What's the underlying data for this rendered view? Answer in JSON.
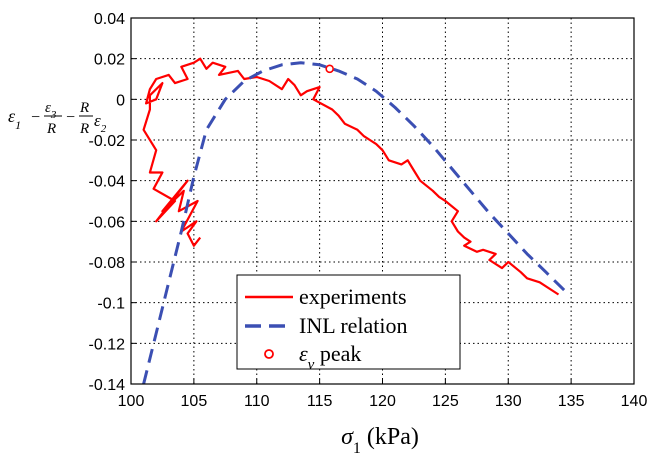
{
  "chart_data": {
    "type": "line",
    "xlabel": "σ1 (kPa)",
    "ylabel": "ε1 − ε3/R − R0/R ε2",
    "xlim": [
      100,
      140
    ],
    "ylim": [
      -0.14,
      0.04
    ],
    "xticks": [
      "100",
      "105",
      "110",
      "115",
      "120",
      "125",
      "130",
      "135",
      "140"
    ],
    "yticks": [
      "0.04",
      "0.02",
      "0",
      "-0.02",
      "-0.04",
      "-0.06",
      "-0.08",
      "-0.1",
      "-0.12",
      "-0.14"
    ],
    "grid": true,
    "legend_position": "bottom-center",
    "series": [
      {
        "name": "experiments",
        "style": "solid",
        "color": "#ff0000",
        "x": [
          105.5,
          105.0,
          104.5,
          105.2,
          104.0,
          105.3,
          103.8,
          104.2,
          102.5,
          104.5,
          102.0,
          103.5,
          101.8,
          102.5,
          101.5,
          102.0,
          101.0,
          101.5,
          101.5,
          102.5,
          102.0,
          101.2,
          101.5,
          102.0,
          103.0,
          103.5,
          104.5,
          104.0,
          105.0,
          105.5,
          106.0,
          106.5,
          107.5,
          107.0,
          108.5,
          109.0,
          110.0,
          111.0,
          112.0,
          112.5,
          113.0,
          113.5,
          114.0,
          115.0,
          114.5,
          116.0,
          116.5,
          117.0,
          118.0,
          118.5,
          119.0,
          119.5,
          120.0,
          120.5,
          121.5,
          122.0,
          122.5,
          123.0,
          124.0,
          124.5,
          125.0,
          126.0,
          125.5,
          126.0,
          126.5,
          127.0,
          126.5,
          127.5,
          128.0,
          129.0,
          128.5,
          129.5,
          130.0,
          131.0,
          131.5,
          132.5,
          133.5,
          134.0
        ],
        "y": [
          -0.068,
          -0.072,
          -0.066,
          -0.06,
          -0.065,
          -0.05,
          -0.055,
          -0.045,
          -0.055,
          -0.04,
          -0.06,
          -0.05,
          -0.044,
          -0.036,
          -0.036,
          -0.025,
          -0.015,
          -0.005,
          0.002,
          0.008,
          0.0,
          -0.002,
          0.005,
          0.01,
          0.012,
          0.008,
          0.01,
          0.016,
          0.018,
          0.02,
          0.015,
          0.018,
          0.016,
          0.012,
          0.014,
          0.01,
          0.011,
          0.009,
          0.005,
          0.01,
          0.007,
          0.002,
          0.004,
          0.006,
          0.0,
          -0.005,
          -0.008,
          -0.012,
          -0.015,
          -0.018,
          -0.02,
          -0.022,
          -0.025,
          -0.03,
          -0.032,
          -0.03,
          -0.035,
          -0.04,
          -0.045,
          -0.048,
          -0.05,
          -0.055,
          -0.06,
          -0.065,
          -0.068,
          -0.07,
          -0.072,
          -0.075,
          -0.074,
          -0.076,
          -0.079,
          -0.083,
          -0.08,
          -0.085,
          -0.088,
          -0.09,
          -0.094,
          -0.096
        ]
      },
      {
        "name": "INL relation",
        "style": "dashed",
        "color": "#3b4fb3",
        "x": [
          101.0,
          102.0,
          103.0,
          104.0,
          105.0,
          106.0,
          107.5,
          109.0,
          110.5,
          112.0,
          113.5,
          115.0,
          116.5,
          118.0,
          119.5,
          121.0,
          122.5,
          124.0,
          125.5,
          127.0,
          128.5,
          130.0,
          131.5,
          133.0,
          134.8
        ],
        "y": [
          -0.14,
          -0.115,
          -0.09,
          -0.065,
          -0.038,
          -0.015,
          0.0,
          0.009,
          0.014,
          0.017,
          0.018,
          0.017,
          0.014,
          0.01,
          0.004,
          -0.004,
          -0.013,
          -0.023,
          -0.034,
          -0.045,
          -0.056,
          -0.066,
          -0.076,
          -0.085,
          -0.096
        ]
      },
      {
        "name": "εv peak",
        "style": "marker",
        "color": "#ff0000",
        "x": [
          115.8
        ],
        "y": [
          0.015
        ]
      }
    ]
  }
}
